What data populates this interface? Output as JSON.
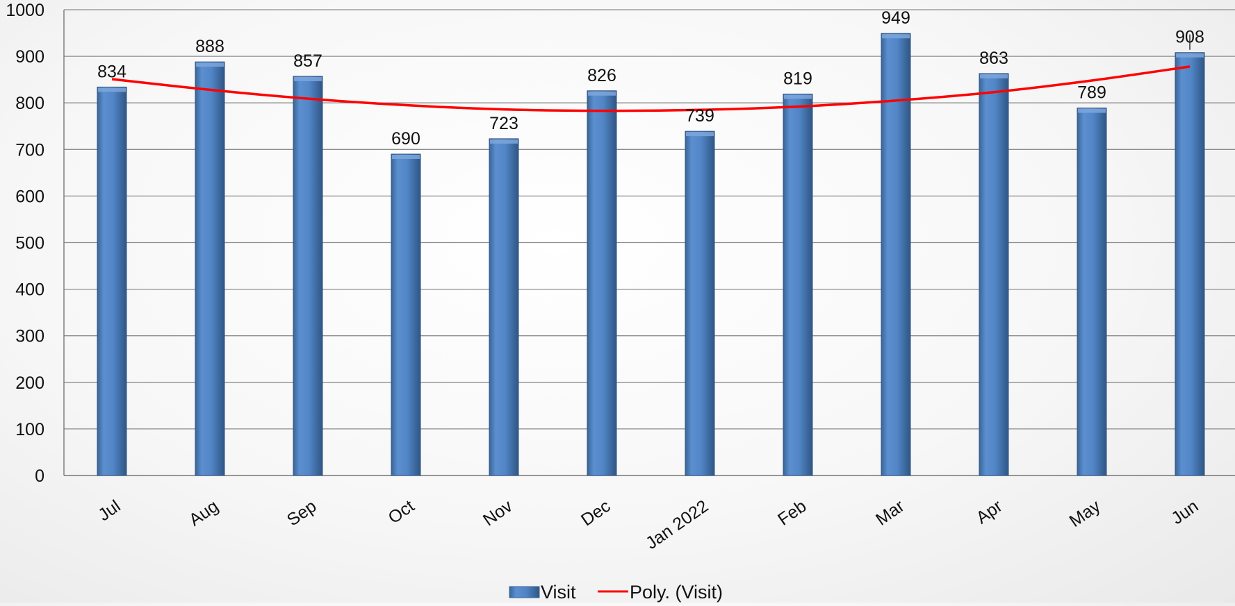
{
  "chart_data": {
    "type": "bar",
    "categories": [
      "Jul",
      "Aug",
      "Sep",
      "Oct",
      "Nov",
      "Dec",
      "Jan 2022",
      "Feb",
      "Mar",
      "Apr",
      "May",
      "Jun"
    ],
    "series": [
      {
        "name": "Visit",
        "values": [
          834,
          888,
          857,
          690,
          723,
          826,
          739,
          819,
          949,
          863,
          789,
          908
        ],
        "color": "#4f81bd"
      }
    ],
    "trendline": {
      "name": "Poly. (Visit)",
      "type": "polynomial",
      "color": "#ff0000",
      "values": [
        851,
        828,
        809,
        795,
        786,
        783,
        785,
        792,
        805,
        823,
        848,
        878
      ]
    },
    "ylim": [
      0,
      1000
    ],
    "yticks": [
      0,
      100,
      200,
      300,
      400,
      500,
      600,
      700,
      800,
      900,
      1000
    ],
    "title": "",
    "xlabel": "",
    "ylabel": "",
    "grid": true,
    "legend_position": "bottom"
  }
}
